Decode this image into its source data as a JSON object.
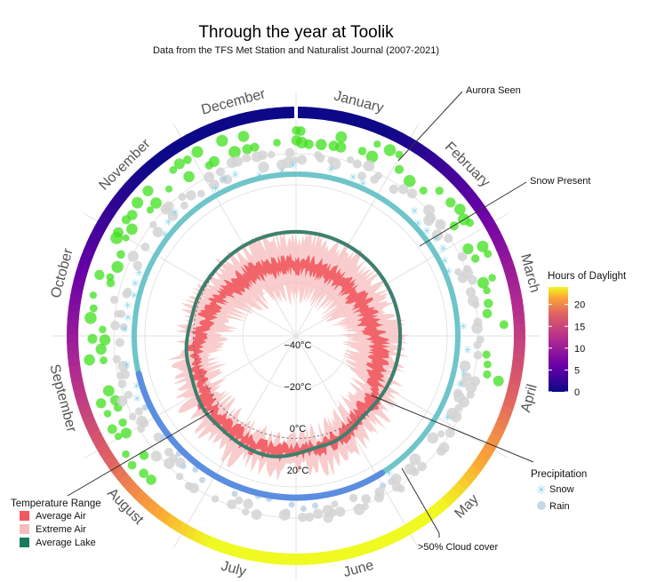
{
  "chart_data": {
    "type": "radial",
    "title": "Through the year at Toolik",
    "subtitle": "Data from the TFS Met Station and Naturalist Journal (2007-2021)",
    "months": [
      "January",
      "February",
      "March",
      "April",
      "May",
      "June",
      "July",
      "August",
      "September",
      "October",
      "November",
      "December"
    ],
    "temperature_ticks": [
      "−40°C",
      "−20°C",
      "0°C",
      "20°C"
    ],
    "temperature_tick_values": [
      -40,
      -20,
      0,
      20
    ],
    "callouts": {
      "aurora": "Aurora Seen",
      "snow_present": "Snow Present",
      "cloud": ">50% Cloud cover"
    },
    "daylight_legend": {
      "title": "Hours of Daylight",
      "ticks": [
        "20",
        "15",
        "10",
        "5",
        "0"
      ],
      "tick_values": [
        20,
        15,
        10,
        5,
        0
      ],
      "range": [
        0,
        24
      ]
    },
    "precip_legend": {
      "title": "Precipitation",
      "items": [
        {
          "label": "Snow",
          "color": "#8fd6ea"
        },
        {
          "label": "Rain",
          "color": "#c5d8ea"
        }
      ]
    },
    "temp_legend": {
      "title": "Temperature Range",
      "items": [
        {
          "label": "Average Air",
          "color": "#f0595f"
        },
        {
          "label": "Extreme Air",
          "color": "#f7bcbc"
        },
        {
          "label": "Average Lake",
          "color": "#1a7a5e"
        }
      ]
    },
    "monthly_temperature": {
      "months": [
        "Jan",
        "Feb",
        "Mar",
        "Apr",
        "May",
        "Jun",
        "Jul",
        "Aug",
        "Sep",
        "Oct",
        "Nov",
        "Dec"
      ],
      "avg_air_low": [
        -27,
        -27,
        -25,
        -17,
        -6,
        3,
        6,
        3,
        -3,
        -13,
        -22,
        -26
      ],
      "avg_air_high": [
        -17,
        -17,
        -14,
        -7,
        2,
        11,
        14,
        11,
        4,
        -5,
        -12,
        -16
      ],
      "extreme_air_low": [
        -42,
        -42,
        -39,
        -31,
        -16,
        -3,
        1,
        -3,
        -12,
        -27,
        -37,
        -41
      ],
      "extreme_air_high": [
        -2,
        -3,
        -2,
        2,
        11,
        22,
        24,
        22,
        12,
        4,
        -1,
        -3
      ],
      "avg_lake": [
        1,
        1,
        1,
        1,
        1,
        7,
        14,
        11,
        6,
        2,
        1,
        1
      ]
    },
    "snow_present_days": [
      [
        1,
        160
      ],
      [
        250,
        365
      ]
    ],
    "colors": {
      "avg_air": "#f0595f",
      "extreme_air": "#f7bcbc",
      "lake": "#3e7f6d",
      "snow_ring": "#6fc5c9",
      "aurora": "#3fe01e",
      "cloud": "#d4d4d4",
      "rain_ring": "#5b8de0"
    }
  }
}
